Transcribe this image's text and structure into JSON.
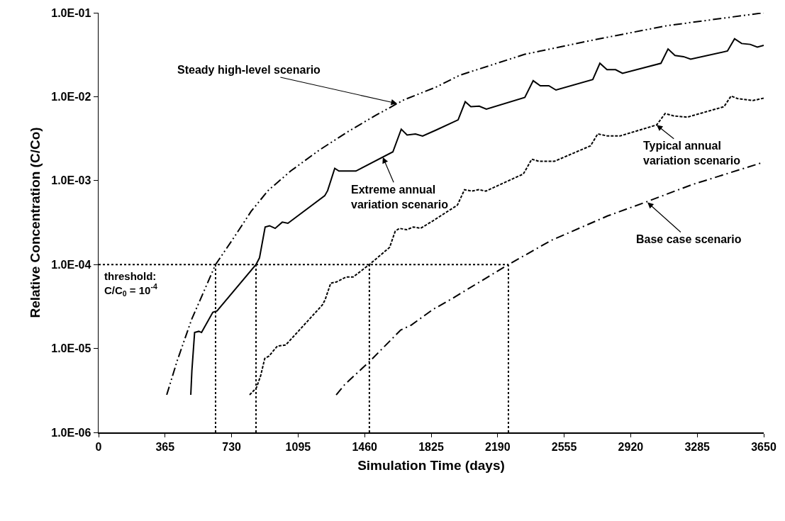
{
  "chart_data": {
    "type": "line",
    "xlabel": "Simulation Time (days)",
    "ylabel": "Relative Concentration (C/Co)",
    "xlim": [
      0,
      3650
    ],
    "xticks": [
      0,
      365,
      730,
      1095,
      1460,
      1825,
      2190,
      2555,
      2920,
      3285,
      3650
    ],
    "ylim": [
      1e-06,
      0.1
    ],
    "yticks": [
      {
        "value": 1e-06,
        "label": "1.0E-06"
      },
      {
        "value": 1e-05,
        "label": "1.0E-05"
      },
      {
        "value": 0.0001,
        "label": "1.0E-04"
      },
      {
        "value": 0.001,
        "label": "1.0E-03"
      },
      {
        "value": 0.01,
        "label": "1.0E-02"
      },
      {
        "value": 0.1,
        "label": "1.0E-01"
      }
    ],
    "log": true,
    "grid": false,
    "series": [
      {
        "color": "#000000",
        "line_style": "dashdotdot",
        "x": [
          374,
          432,
          510,
          642,
          743,
          837,
          930,
          1054,
          1210,
          1366,
          1521,
          1677,
          1852,
          1981,
          2339,
          2728,
          3117,
          3650
        ],
        "values": [
          2.8e-06,
          7.2e-06,
          2.2e-05,
          0.0001,
          0.00021,
          0.00043,
          0.00076,
          0.0013,
          0.0023,
          0.0038,
          0.006,
          0.0092,
          0.013,
          0.018,
          0.032,
          0.048,
          0.07,
          0.1
        ]
      },
      {
        "color": "#000000",
        "line_style": "solid",
        "x": [
          506,
          512,
          527,
          550,
          565,
          627,
          650,
          864,
          883,
          914,
          938,
          969,
          1008,
          1039,
          1241,
          1257,
          1296,
          1319,
          1374,
          1412,
          1615,
          1661,
          1693,
          1739,
          1778,
          1852,
          1973,
          2012,
          2043,
          2089,
          2128,
          2339,
          2385,
          2424,
          2471,
          2510,
          2712,
          2751,
          2790,
          2837,
          2875,
          3086,
          3125,
          3163,
          3210,
          3249,
          3451,
          3490,
          3529,
          3576,
          3615,
          3650
        ],
        "values": [
          2.8e-06,
          5.4e-06,
          1.55e-05,
          1.6e-05,
          1.55e-05,
          2.7e-05,
          2.8e-05,
          0.0001,
          0.00012,
          0.00028,
          0.00029,
          0.00027,
          0.00032,
          0.00031,
          0.00066,
          0.00076,
          0.0014,
          0.0013,
          0.0013,
          0.0013,
          0.0022,
          0.0041,
          0.0035,
          0.0036,
          0.0034,
          0.004,
          0.0053,
          0.0087,
          0.0076,
          0.0077,
          0.0071,
          0.0098,
          0.0155,
          0.0135,
          0.0135,
          0.012,
          0.016,
          0.025,
          0.021,
          0.021,
          0.019,
          0.025,
          0.037,
          0.031,
          0.03,
          0.028,
          0.035,
          0.049,
          0.043,
          0.042,
          0.039,
          0.041
        ]
      },
      {
        "color": "#000000",
        "line_style": "dashed",
        "x": [
          829,
          866,
          889,
          912,
          935,
          981,
          1027,
          1228,
          1243,
          1274,
          1305,
          1358,
          1397,
          1486,
          1597,
          1628,
          1651,
          1690,
          1728,
          1767,
          1833,
          1969,
          2008,
          2047,
          2086,
          2125,
          2331,
          2377,
          2416,
          2471,
          2502,
          2700,
          2739,
          2794,
          2860,
          3062,
          3109,
          3156,
          3230,
          3432,
          3471,
          3506,
          3591,
          3650
        ],
        "values": [
          2.8e-06,
          3.4e-06,
          4.7e-06,
          7.6e-06,
          8.1e-06,
          1.07e-05,
          1.1e-05,
          3.3e-05,
          3.8e-05,
          6e-05,
          6.2e-05,
          7.1e-05,
          7.1e-05,
          0.0001,
          0.00016,
          0.00025,
          0.00027,
          0.00026,
          0.00028,
          0.00027,
          0.00033,
          0.00051,
          0.00078,
          0.00075,
          0.00078,
          0.00075,
          0.0012,
          0.0018,
          0.0017,
          0.0017,
          0.0017,
          0.0026,
          0.0036,
          0.0034,
          0.0034,
          0.0046,
          0.0063,
          0.0059,
          0.0057,
          0.0076,
          0.0102,
          0.0095,
          0.009,
          0.0096
        ]
      },
      {
        "color": "#000000",
        "line_style": "dashdot",
        "x": [
          1304,
          1350,
          1490,
          1658,
          1716,
          1833,
          1946,
          2249,
          2486,
          2794,
          3008,
          3253,
          3650
        ],
        "values": [
          2.8e-06,
          3.7e-06,
          7.1e-06,
          1.66e-05,
          1.9e-05,
          2.9e-05,
          4e-05,
          0.0001,
          0.000195,
          0.00038,
          0.00056,
          0.00089,
          0.00166
        ]
      }
    ],
    "ref_lines": [
      {
        "axis": "y",
        "value": 0.0001,
        "label": "threshold:\nC/C$_{0}$ = 10$^{-4}$",
        "line_style": "dotted",
        "color": "#000000"
      },
      {
        "axis": "x",
        "value": 642,
        "line_style": "dotted",
        "color": "#000000"
      },
      {
        "axis": "x",
        "value": 864,
        "line_style": "dotted",
        "color": "#000000"
      },
      {
        "axis": "x",
        "value": 1486,
        "line_style": "dotted",
        "color": "#000000"
      },
      {
        "axis": "x",
        "value": 2249,
        "line_style": "dotted",
        "color": "#000000"
      }
    ],
    "annotations": [
      {
        "text": "Steady high-level scenario",
        "x": 1638,
        "y": 0.0083
      },
      {
        "text": "Extreme annual\nvariation scenario",
        "x": 1560,
        "y": 0.0019
      },
      {
        "text": "Typical annual\nvariation scenario",
        "x": 3062,
        "y": 0.0046
      },
      {
        "text": "Base case scenario",
        "x": 3012,
        "y": 0.00055
      }
    ]
  }
}
